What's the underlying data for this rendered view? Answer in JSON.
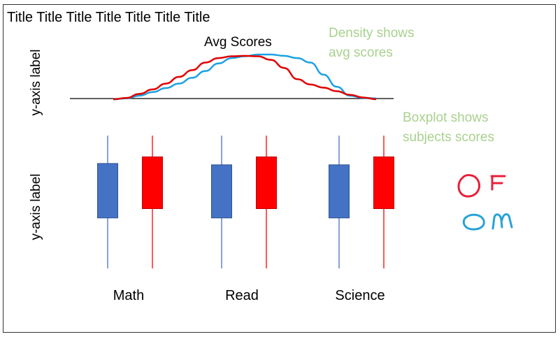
{
  "title": "Title Title Title Title Title Title Title",
  "notes": {
    "density": [
      "Density shows",
      "avg scores"
    ],
    "boxplot": [
      "Boxplot shows",
      "subjects scores"
    ]
  },
  "legend_annotations": {
    "female": "OF",
    "male": "OM"
  },
  "colors": {
    "blue_series": "#4472c4",
    "red_series": "#ff0000",
    "density_blue": "#1ba1e2",
    "density_red": "#e00000",
    "note_green": "#a9d18e",
    "annotation_red": "#e8203a",
    "annotation_blue": "#27a3d6"
  },
  "chart_data": [
    {
      "type": "line",
      "title": "Avg Scores",
      "ylabel": "y-axis label",
      "series": [
        {
          "color": "#1ba1e2",
          "x": [
            0,
            5,
            10,
            15,
            20,
            25,
            30,
            35,
            40,
            45,
            50,
            55,
            60,
            65,
            70,
            75,
            80,
            85,
            90,
            95,
            100
          ],
          "values": [
            0,
            0.02,
            0.08,
            0.16,
            0.25,
            0.35,
            0.48,
            0.63,
            0.8,
            0.92,
            0.96,
            1.0,
            1.0,
            0.97,
            0.92,
            0.82,
            0.55,
            0.28,
            0.08,
            0.03,
            0.02
          ]
        },
        {
          "color": "#e00000",
          "x": [
            0,
            5,
            10,
            15,
            20,
            25,
            30,
            35,
            40,
            45,
            50,
            55,
            60,
            65,
            70,
            75,
            80,
            85,
            90,
            95,
            100
          ],
          "values": [
            0,
            0.03,
            0.12,
            0.22,
            0.35,
            0.5,
            0.65,
            0.82,
            0.92,
            0.96,
            0.97,
            0.96,
            0.88,
            0.7,
            0.45,
            0.33,
            0.26,
            0.18,
            0.1,
            0.04,
            0.0
          ]
        }
      ]
    },
    {
      "type": "boxplot",
      "ylabel": "y-axis label",
      "categories": [
        "Math",
        "Read",
        "Science"
      ],
      "series": [
        {
          "color": "#4472c4",
          "boxes": [
            {
              "min": 0.0,
              "q1": 0.38,
              "q3": 0.79,
              "max": 1.0
            },
            {
              "min": 0.0,
              "q1": 0.38,
              "q3": 0.78,
              "max": 1.0
            },
            {
              "min": 0.0,
              "q1": 0.38,
              "q3": 0.78,
              "max": 1.0
            }
          ]
        },
        {
          "color": "#ff0000",
          "boxes": [
            {
              "min": 0.0,
              "q1": 0.45,
              "q3": 0.84,
              "max": 1.0
            },
            {
              "min": 0.0,
              "q1": 0.45,
              "q3": 0.84,
              "max": 1.0
            },
            {
              "min": 0.0,
              "q1": 0.45,
              "q3": 0.84,
              "max": 1.0
            }
          ]
        }
      ]
    }
  ]
}
